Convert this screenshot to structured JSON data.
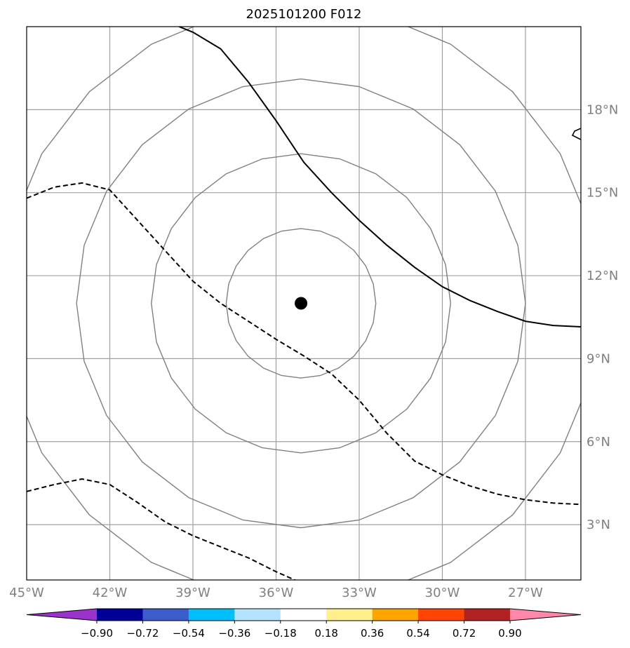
{
  "title": "2025101200 F012",
  "map": {
    "lon_range": [
      -45,
      -25
    ],
    "lat_range": [
      1,
      21
    ],
    "meridians": [
      -42,
      -39,
      -36,
      -33,
      -30,
      -27
    ],
    "parallels": [
      3,
      6,
      9,
      12,
      15,
      18
    ],
    "lon_labels": [
      "45°W",
      "42°W",
      "39°W",
      "36°W",
      "33°W",
      "30°W",
      "27°W"
    ],
    "lat_labels": [
      "3°N",
      "6°N",
      "9°N",
      "12°N",
      "15°N",
      "18°N"
    ],
    "gridline_color": "#a0a0a0",
    "range_ring_color": "#808080",
    "center": {
      "lon": -35.1,
      "lat": 11.0
    },
    "range_rings_deg": [
      2.7,
      5.4,
      8.1,
      10.8
    ],
    "center_marker_color": "#000000"
  },
  "contours": [
    {
      "style": "solid",
      "color": "#000000",
      "points": [
        [
          -39.5,
          21
        ],
        [
          -39,
          20.8
        ],
        [
          -38,
          20.2
        ],
        [
          -37,
          19
        ],
        [
          -36,
          17.6
        ],
        [
          -35,
          16.1
        ],
        [
          -34,
          15
        ],
        [
          -33,
          14
        ],
        [
          -32,
          13.1
        ],
        [
          -31,
          12.3
        ],
        [
          -30,
          11.6
        ],
        [
          -29,
          11.1
        ],
        [
          -28,
          10.7
        ],
        [
          -27,
          10.35
        ],
        [
          -26,
          10.2
        ],
        [
          -25,
          10.15
        ]
      ]
    },
    {
      "style": "dashed",
      "color": "#000000",
      "points": [
        [
          -45,
          14.8
        ],
        [
          -44,
          15.2
        ],
        [
          -43,
          15.35
        ],
        [
          -42,
          15.1
        ],
        [
          -41,
          14
        ],
        [
          -40,
          12.9
        ],
        [
          -39,
          11.8
        ],
        [
          -38,
          11
        ],
        [
          -37,
          10.35
        ],
        [
          -36,
          9.7
        ],
        [
          -35,
          9.1
        ],
        [
          -34,
          8.45
        ],
        [
          -33,
          7.5
        ],
        [
          -32,
          6.3
        ],
        [
          -31,
          5.3
        ],
        [
          -30,
          4.8
        ],
        [
          -29,
          4.4
        ],
        [
          -28,
          4.1
        ],
        [
          -27,
          3.9
        ],
        [
          -26,
          3.78
        ],
        [
          -25,
          3.73
        ]
      ]
    },
    {
      "style": "dashed",
      "color": "#000000",
      "points": [
        [
          -45,
          4.2
        ],
        [
          -44,
          4.45
        ],
        [
          -43,
          4.65
        ],
        [
          -42,
          4.45
        ],
        [
          -41,
          3.8
        ],
        [
          -40,
          3.1
        ],
        [
          -39,
          2.6
        ],
        [
          -38,
          2.2
        ],
        [
          -37,
          1.8
        ],
        [
          -36,
          1.3
        ],
        [
          -35.1,
          0.9
        ]
      ]
    }
  ],
  "colorbar": {
    "colors": [
      "#9933cc",
      "#000099",
      "#3d5ccc",
      "#00bfff",
      "#b3e3ff",
      "#ffffff",
      "#fff08c",
      "#ffa500",
      "#ff4500",
      "#b22222",
      "#ff88aa"
    ],
    "tick_labels": [
      "−0.90",
      "−0.72",
      "−0.54",
      "−0.36",
      "−0.18",
      "0.18",
      "0.36",
      "0.54",
      "0.72",
      "0.90"
    ],
    "extend": "both"
  }
}
